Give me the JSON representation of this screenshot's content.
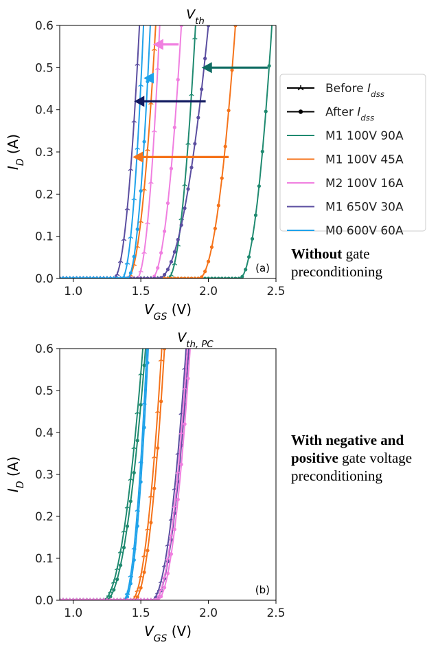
{
  "chart_data": [
    {
      "id": "a",
      "type": "line",
      "title": "V_th",
      "title_main": "V",
      "title_sub": "th",
      "panel_label": "(a)",
      "xlabel_main": "V",
      "xlabel_sub": "GS",
      "xlabel_unit": " (V)",
      "ylabel_main": "I",
      "ylabel_sub": "D",
      "ylabel_unit": " (A)",
      "xlim": [
        0.9,
        2.5
      ],
      "ylim": [
        0,
        0.6
      ],
      "xticks": [
        "1.0",
        "1.5",
        "2.0",
        "2.5"
      ],
      "yticks": [
        "0.0",
        "0.1",
        "0.2",
        "0.3",
        "0.4",
        "0.5",
        "0.6"
      ],
      "grid": false,
      "curves": [
        {
          "series": 0,
          "variant": "before",
          "vth": 1.7,
          "x06": 1.905
        },
        {
          "series": 0,
          "variant": "after",
          "vth": 2.23,
          "x06": 2.47
        },
        {
          "series": 1,
          "variant": "before",
          "vth": 1.4,
          "x06": 1.61
        },
        {
          "series": 1,
          "variant": "after",
          "vth": 1.93,
          "x06": 2.2
        },
        {
          "series": 2,
          "variant": "before",
          "vth": 1.47,
          "x06": 1.64
        },
        {
          "series": 2,
          "variant": "after",
          "vth": 1.58,
          "x06": 1.8
        },
        {
          "series": 3,
          "variant": "before",
          "vth": 1.3,
          "x06": 1.49
        },
        {
          "series": 3,
          "variant": "after",
          "vth": 1.63,
          "x06": 2.0
        },
        {
          "series": 4,
          "variant": "before",
          "vth": 1.36,
          "x06": 1.52
        },
        {
          "series": 4,
          "variant": "after",
          "vth": 1.4,
          "x06": 1.57
        }
      ],
      "arrows": [
        {
          "series": 0,
          "y": 0.5,
          "x_from": 2.44,
          "x_to": 1.95
        },
        {
          "series": 1,
          "y": 0.288,
          "x_from": 2.15,
          "x_to": 1.44
        },
        {
          "series": 2,
          "y": 0.555,
          "x_from": 1.78,
          "x_to": 1.59
        },
        {
          "series": 3,
          "y": 0.42,
          "x_from": 1.98,
          "x_to": 1.45
        },
        {
          "series": 4,
          "y": 0.475,
          "x_from": 1.57,
          "x_to": 1.52
        }
      ]
    },
    {
      "id": "b",
      "type": "line",
      "title": "V_th,PC",
      "title_main": "V",
      "title_sub": "th, PC",
      "panel_label": "(b)",
      "xlabel_main": "V",
      "xlabel_sub": "GS",
      "xlabel_unit": " (V)",
      "ylabel_main": "I",
      "ylabel_sub": "D",
      "ylabel_unit": " (A)",
      "xlim": [
        0.9,
        2.5
      ],
      "ylim": [
        0,
        0.6
      ],
      "xticks": [
        "1.0",
        "1.5",
        "2.0",
        "2.5"
      ],
      "yticks": [
        "0.0",
        "0.1",
        "0.2",
        "0.3",
        "0.4",
        "0.5",
        "0.6"
      ],
      "grid": false,
      "curves": [
        {
          "series": 0,
          "variant": "before",
          "vth": 1.22,
          "x06": 1.515
        },
        {
          "series": 0,
          "variant": "after",
          "vth": 1.24,
          "x06": 1.535
        },
        {
          "series": 4,
          "variant": "before",
          "vth": 1.37,
          "x06": 1.545
        },
        {
          "series": 4,
          "variant": "after",
          "vth": 1.38,
          "x06": 1.555
        },
        {
          "series": 1,
          "variant": "before",
          "vth": 1.43,
          "x06": 1.655
        },
        {
          "series": 1,
          "variant": "after",
          "vth": 1.45,
          "x06": 1.675
        },
        {
          "series": 3,
          "variant": "before",
          "vth": 1.58,
          "x06": 1.835
        },
        {
          "series": 3,
          "variant": "after",
          "vth": 1.6,
          "x06": 1.855
        },
        {
          "series": 2,
          "variant": "before",
          "vth": 1.6,
          "x06": 1.845
        },
        {
          "series": 2,
          "variant": "after",
          "vth": 1.62,
          "x06": 1.865
        }
      ]
    }
  ],
  "legend": {
    "placement": "right of panel (a)",
    "markers": [
      {
        "text_main": "Before ",
        "text_italic": "I",
        "text_sub": "dss",
        "marker": "star"
      },
      {
        "text_main": "After ",
        "text_italic": "I",
        "text_sub": "dss",
        "marker": "dot"
      }
    ],
    "series": [
      {
        "name": "M1 100V 90A",
        "color": "#1f8a70"
      },
      {
        "name": "M1 100V 45A",
        "color": "#f5731a"
      },
      {
        "name": "M2 100V 16A",
        "color": "#f07fe0"
      },
      {
        "name": "M1 650V 30A",
        "color": "#5b4ea0"
      },
      {
        "name": "M0 600V 60A",
        "color": "#1fa2ea"
      }
    ]
  },
  "arrow_colors": [
    "#0f6b62",
    "#f5731a",
    "#f07fe0",
    "#121a60",
    "#1fa2ea"
  ],
  "notes": {
    "a": {
      "bold": "Without",
      "rest": " gate preconditioning"
    },
    "b": {
      "bold": "With negative and positive",
      "rest": " gate voltage preconditioning"
    }
  }
}
